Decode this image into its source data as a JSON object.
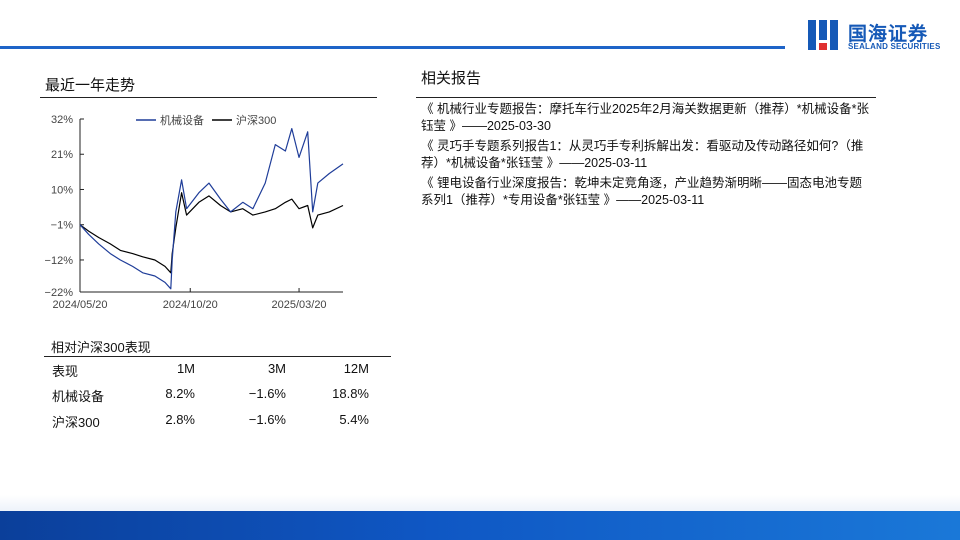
{
  "header": {
    "logo_cn": "国海证券",
    "logo_en": "SEALAND SECURITIES",
    "accent_color": "#1e64c8"
  },
  "trend": {
    "title": "最近一年走势"
  },
  "related": {
    "title": "相关报告",
    "reports": [
      "《 机械行业专题报告：摩托车行业2025年2月海关数据更新（推荐）*机械设备*张钰莹 》——2025-03-30",
      "《 灵巧手专题系列报告1：从灵巧手专利拆解出发：看驱动及传动路径如何?（推荐）*机械设备*张钰莹 》——2025-03-11",
      "《 锂电设备行业深度报告：乾坤未定竞角逐，产业趋势渐明晰——固态电池专题系列1（推荐）*专用设备*张钰莹 》——2025-03-11"
    ]
  },
  "performance": {
    "title": "相对沪深300表现",
    "headers": [
      "表现",
      "1M",
      "3M",
      "12M"
    ],
    "rows": [
      [
        "机械设备",
        "8.2%",
        "−1.6%",
        "18.8%"
      ],
      [
        "沪深300",
        "2.8%",
        "−1.6%",
        "5.4%"
      ]
    ]
  },
  "chart_data": {
    "type": "line",
    "ylim": [
      -22,
      32
    ],
    "yticks": [
      "32%",
      "21%",
      "10%",
      "−1%",
      "−12%",
      "−22%"
    ],
    "ytick_values": [
      32,
      21,
      10,
      -1,
      -12,
      -22
    ],
    "xticks": [
      "2024/05/20",
      "2024/10/20",
      "2025/03/20"
    ],
    "xtick_values": [
      "2024-05-20",
      "2024-10-20",
      "2025-03-20"
    ],
    "xlim": [
      "2024-05-20",
      "2025-05-20"
    ],
    "legend_position": "top-center",
    "grid": false,
    "x": [
      "2024-05-20",
      "2024-06-01",
      "2024-06-15",
      "2024-07-01",
      "2024-07-15",
      "2024-08-01",
      "2024-08-15",
      "2024-09-01",
      "2024-09-15",
      "2024-09-23",
      "2024-09-25",
      "2024-09-30",
      "2024-10-08",
      "2024-10-15",
      "2024-11-01",
      "2024-11-15",
      "2024-12-01",
      "2024-12-15",
      "2025-01-01",
      "2025-01-15",
      "2025-02-01",
      "2025-02-15",
      "2025-03-01",
      "2025-03-10",
      "2025-03-20",
      "2025-04-01",
      "2025-04-08",
      "2025-04-15",
      "2025-05-01",
      "2025-05-20"
    ],
    "series": [
      {
        "name": "机械设备",
        "color": "#1f3d99",
        "values": [
          -1,
          -4,
          -7,
          -10,
          -12,
          -14,
          -16,
          -17,
          -19,
          -21,
          -12,
          3,
          13,
          4,
          9,
          12,
          7,
          3,
          6,
          4,
          12,
          24,
          22,
          29,
          20,
          28,
          3,
          12,
          15,
          18
        ]
      },
      {
        "name": "沪深300",
        "color": "#000000",
        "values": [
          -1,
          -3,
          -5,
          -7,
          -9,
          -10,
          -11,
          -12,
          -14,
          -16,
          -10,
          -2,
          9,
          2,
          6,
          8,
          5,
          3,
          4,
          2,
          3,
          4,
          6,
          7,
          4,
          5,
          -2,
          2,
          3,
          5
        ]
      }
    ]
  }
}
